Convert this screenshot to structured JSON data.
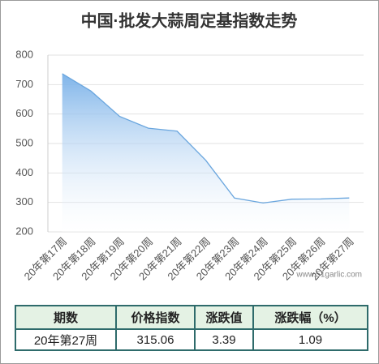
{
  "chart_data": {
    "type": "area",
    "title": "中国·批发大蒜周定基指数走势",
    "categories": [
      "20年第17周",
      "20年第18周",
      "20年第19周",
      "20年第20周",
      "20年第21周",
      "20年第22周",
      "20年第23周",
      "20年第24周",
      "20年第25周",
      "20年第26周",
      "20年第27周"
    ],
    "values": [
      737,
      678,
      592,
      552,
      542,
      443,
      315,
      298,
      311,
      311.67,
      315.06
    ],
    "color": "#6aa6de",
    "ylim": [
      200,
      800
    ],
    "yticks": [
      200,
      300,
      400,
      500,
      600,
      700,
      800
    ],
    "grid": true,
    "annotation": "www.51garlic.com"
  },
  "table": {
    "header": [
      "期数",
      "价格指数",
      "涨跌值",
      "涨跌幅（%）"
    ],
    "rows": [
      [
        "20年第27周",
        "315.06",
        "3.39",
        "1.09"
      ]
    ]
  }
}
